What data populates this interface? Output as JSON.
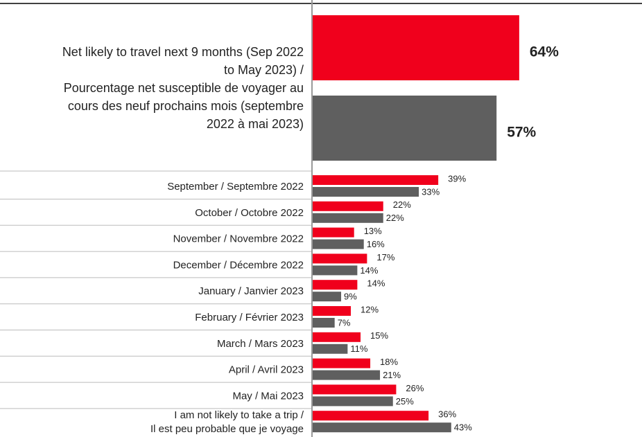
{
  "chart_data": {
    "type": "bar",
    "categories": [
      [
        "Net likely to travel next 9 months (Sep 2022",
        "to May 2023) /",
        "Pourcentage net susceptible de voyager au",
        "cours des neuf prochains mois (septembre",
        "2022 à mai 2023)"
      ],
      "September / Septembre 2022",
      "October / Octobre 2022",
      "November / Novembre 2022",
      "December / Décembre 2022",
      "January / Janvier 2023",
      "February / Février  2023",
      "March / Mars  2023",
      "April / Avril  2023",
      "May / Mai  2023",
      [
        "I am not likely to take a trip /",
        "Il est peu probable que je voyage"
      ]
    ],
    "series": [
      {
        "color": "#f0001c",
        "values": [
          64,
          39,
          22,
          13,
          17,
          14,
          12,
          15,
          18,
          26,
          36
        ],
        "value_labels": [
          "64%",
          "39%",
          "22%",
          "13%",
          "17%",
          "14%",
          "12%",
          "15%",
          "18%",
          "26%",
          "36%"
        ]
      },
      {
        "color": "#5f5f5f",
        "values": [
          57,
          33,
          22,
          16,
          14,
          9,
          7,
          11,
          21,
          25,
          43
        ],
        "value_labels": [
          "57%",
          "33%",
          "22%",
          "16%",
          "14%",
          "9%",
          "7%",
          "11%",
          "21%",
          "25%",
          "43%"
        ]
      }
    ],
    "xlim": [
      0,
      100
    ]
  }
}
